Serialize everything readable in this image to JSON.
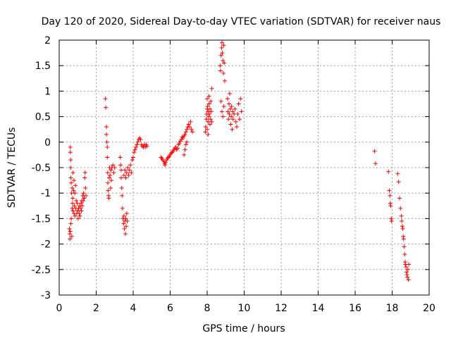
{
  "chart_data": {
    "type": "scatter",
    "title": "Day 120 of 2020, Sidereal Day-to-day VTEC variation (SDTVAR) for receiver naus",
    "xlabel": "GPS time / hours",
    "ylabel": "SDTVAR / TECUs",
    "xlim": [
      0,
      20
    ],
    "ylim": [
      -3,
      2
    ],
    "grid": true,
    "marker": "+",
    "color": "#ff0000",
    "xticks": [
      {
        "value": 0,
        "label": "0"
      },
      {
        "value": 2,
        "label": "2"
      },
      {
        "value": 4,
        "label": "4"
      },
      {
        "value": 6,
        "label": "6"
      },
      {
        "value": 8,
        "label": "8"
      },
      {
        "value": 10,
        "label": "10"
      },
      {
        "value": 12,
        "label": "12"
      },
      {
        "value": 14,
        "label": "14"
      },
      {
        "value": 16,
        "label": "16"
      },
      {
        "value": 18,
        "label": "18"
      },
      {
        "value": 20,
        "label": "20"
      }
    ],
    "yticks": [
      {
        "value": -3,
        "label": "-3"
      },
      {
        "value": -2.5,
        "label": "-2.5"
      },
      {
        "value": -2,
        "label": "-2"
      },
      {
        "value": -1.5,
        "label": "-1.5"
      },
      {
        "value": -1,
        "label": "-1"
      },
      {
        "value": -0.5,
        "label": "-0.5"
      },
      {
        "value": 0,
        "label": "0"
      },
      {
        "value": 0.5,
        "label": "0.5"
      },
      {
        "value": 1,
        "label": "1"
      },
      {
        "value": 1.5,
        "label": "1.5"
      },
      {
        "value": 2,
        "label": "2"
      }
    ],
    "series": [
      {
        "name": "SDTVAR",
        "points": [
          [
            0.55,
            -1.7
          ],
          [
            0.57,
            -1.8
          ],
          [
            0.58,
            -1.9
          ],
          [
            0.6,
            -1.75
          ],
          [
            0.6,
            -0.1
          ],
          [
            0.6,
            -0.2
          ],
          [
            0.62,
            -0.35
          ],
          [
            0.62,
            -0.5
          ],
          [
            0.63,
            -0.7
          ],
          [
            0.63,
            -1.6
          ],
          [
            0.65,
            -0.8
          ],
          [
            0.65,
            -1.5
          ],
          [
            0.67,
            -1.0
          ],
          [
            0.68,
            -1.85
          ],
          [
            0.7,
            -0.9
          ],
          [
            0.7,
            -1.3
          ],
          [
            0.72,
            -1.2
          ],
          [
            0.73,
            -1.1
          ],
          [
            0.75,
            -0.6
          ],
          [
            0.75,
            -1.35
          ],
          [
            0.78,
            -0.95
          ],
          [
            0.8,
            -1.4
          ],
          [
            0.8,
            -0.75
          ],
          [
            0.82,
            -1.25
          ],
          [
            0.85,
            -1.0
          ],
          [
            0.85,
            -1.45
          ],
          [
            0.88,
            -0.85
          ],
          [
            0.9,
            -1.3
          ],
          [
            0.92,
            -1.15
          ],
          [
            0.95,
            -1.4
          ],
          [
            0.98,
            -1.2
          ],
          [
            1.0,
            -1.35
          ],
          [
            1.02,
            -1.5
          ],
          [
            1.05,
            -1.3
          ],
          [
            1.08,
            -1.4
          ],
          [
            1.1,
            -1.25
          ],
          [
            1.12,
            -1.45
          ],
          [
            1.15,
            -1.3
          ],
          [
            1.18,
            -1.2
          ],
          [
            1.2,
            -1.35
          ],
          [
            1.22,
            -1.15
          ],
          [
            1.25,
            -1.25
          ],
          [
            1.28,
            -1.05
          ],
          [
            1.3,
            -1.15
          ],
          [
            1.32,
            -1.0
          ],
          [
            1.35,
            -1.1
          ],
          [
            1.38,
            -0.7
          ],
          [
            1.4,
            -0.6
          ],
          [
            1.42,
            -0.9
          ],
          [
            1.45,
            -1.05
          ],
          [
            2.5,
            0.85
          ],
          [
            2.52,
            0.68
          ],
          [
            2.55,
            0.3
          ],
          [
            2.55,
            0.15
          ],
          [
            2.58,
            0.0
          ],
          [
            2.6,
            -0.1
          ],
          [
            2.6,
            -0.3
          ],
          [
            2.62,
            -0.6
          ],
          [
            2.63,
            -0.8
          ],
          [
            2.65,
            -0.95
          ],
          [
            2.67,
            -1.05
          ],
          [
            2.68,
            -1.1
          ],
          [
            2.7,
            -0.7
          ],
          [
            2.72,
            -0.5
          ],
          [
            2.75,
            -0.65
          ],
          [
            2.78,
            -0.9
          ],
          [
            2.8,
            -0.55
          ],
          [
            2.82,
            -0.75
          ],
          [
            2.85,
            -0.5
          ],
          [
            2.9,
            -0.45
          ],
          [
            2.95,
            -0.6
          ],
          [
            3.0,
            -0.5
          ],
          [
            3.3,
            -0.3
          ],
          [
            3.32,
            -0.45
          ],
          [
            3.35,
            -0.55
          ],
          [
            3.35,
            -0.7
          ],
          [
            3.38,
            -0.9
          ],
          [
            3.4,
            -1.05
          ],
          [
            3.42,
            -1.3
          ],
          [
            3.45,
            -1.5
          ],
          [
            3.48,
            -1.6
          ],
          [
            3.5,
            -1.45
          ],
          [
            3.52,
            -1.7
          ],
          [
            3.55,
            -1.55
          ],
          [
            3.58,
            -1.8
          ],
          [
            3.6,
            -1.5
          ],
          [
            3.62,
            -1.65
          ],
          [
            3.65,
            -1.4
          ],
          [
            3.68,
            -1.55
          ],
          [
            3.5,
            -0.65
          ],
          [
            3.55,
            -0.55
          ],
          [
            3.6,
            -0.7
          ],
          [
            3.65,
            -0.6
          ],
          [
            3.7,
            -0.5
          ],
          [
            3.75,
            -0.65
          ],
          [
            3.8,
            -0.55
          ],
          [
            3.85,
            -0.45
          ],
          [
            3.9,
            -0.6
          ],
          [
            3.95,
            -0.35
          ],
          [
            4.0,
            -0.3
          ],
          [
            4.05,
            -0.2
          ],
          [
            4.1,
            -0.15
          ],
          [
            4.15,
            -0.1
          ],
          [
            4.2,
            -0.05
          ],
          [
            4.25,
            0.0
          ],
          [
            4.3,
            0.05
          ],
          [
            4.35,
            0.08
          ],
          [
            4.4,
            0.05
          ],
          [
            4.45,
            -0.05
          ],
          [
            4.5,
            -0.08
          ],
          [
            4.55,
            -0.1
          ],
          [
            4.6,
            -0.05
          ],
          [
            4.65,
            -0.1
          ],
          [
            4.7,
            -0.05
          ],
          [
            4.75,
            -0.08
          ],
          [
            5.5,
            -0.3
          ],
          [
            5.55,
            -0.32
          ],
          [
            5.6,
            -0.35
          ],
          [
            5.65,
            -0.38
          ],
          [
            5.7,
            -0.42
          ],
          [
            5.72,
            -0.45
          ],
          [
            5.75,
            -0.4
          ],
          [
            5.8,
            -0.35
          ],
          [
            5.85,
            -0.32
          ],
          [
            5.9,
            -0.3
          ],
          [
            5.95,
            -0.28
          ],
          [
            6.0,
            -0.25
          ],
          [
            6.05,
            -0.22
          ],
          [
            6.1,
            -0.2
          ],
          [
            6.15,
            -0.18
          ],
          [
            6.2,
            -0.15
          ],
          [
            6.25,
            -0.12
          ],
          [
            6.3,
            -0.1
          ],
          [
            6.35,
            -0.15
          ],
          [
            6.4,
            -0.12
          ],
          [
            6.45,
            -0.05
          ],
          [
            6.5,
            -0.02
          ],
          [
            6.55,
            0.02
          ],
          [
            6.6,
            0.05
          ],
          [
            6.65,
            0.1
          ],
          [
            6.7,
            0.08
          ],
          [
            6.75,
            0.12
          ],
          [
            6.8,
            0.15
          ],
          [
            6.85,
            0.2
          ],
          [
            6.9,
            0.25
          ],
          [
            6.95,
            0.3
          ],
          [
            7.0,
            0.35
          ],
          [
            7.05,
            0.3
          ],
          [
            7.1,
            0.4
          ],
          [
            7.15,
            0.25
          ],
          [
            7.2,
            0.2
          ],
          [
            6.75,
            -0.25
          ],
          [
            6.8,
            -0.15
          ],
          [
            6.85,
            -0.05
          ],
          [
            6.9,
            0.0
          ],
          [
            7.9,
            0.2
          ],
          [
            7.92,
            0.3
          ],
          [
            7.95,
            0.45
          ],
          [
            7.97,
            0.55
          ],
          [
            8.0,
            0.65
          ],
          [
            8.0,
            0.85
          ],
          [
            8.02,
            0.7
          ],
          [
            8.05,
            0.6
          ],
          [
            8.05,
            0.4
          ],
          [
            8.08,
            0.5
          ],
          [
            8.1,
            0.9
          ],
          [
            8.1,
            0.75
          ],
          [
            8.12,
            0.55
          ],
          [
            8.15,
            0.35
          ],
          [
            8.15,
            0.65
          ],
          [
            8.18,
            0.45
          ],
          [
            8.2,
            0.8
          ],
          [
            8.22,
            0.6
          ],
          [
            8.25,
            0.4
          ],
          [
            8.25,
            1.05
          ],
          [
            8.0,
            0.25
          ],
          [
            8.05,
            0.15
          ],
          [
            8.7,
            1.5
          ],
          [
            8.72,
            1.4
          ],
          [
            8.75,
            1.7
          ],
          [
            8.78,
            1.85
          ],
          [
            8.8,
            1.95
          ],
          [
            8.82,
            1.75
          ],
          [
            8.85,
            1.6
          ],
          [
            8.88,
            1.35
          ],
          [
            8.9,
            1.9
          ],
          [
            8.92,
            1.55
          ],
          [
            8.95,
            1.2
          ],
          [
            8.75,
            0.8
          ],
          [
            8.8,
            0.6
          ],
          [
            8.85,
            0.5
          ],
          [
            8.9,
            0.7
          ],
          [
            9.1,
            0.85
          ],
          [
            9.12,
            0.6
          ],
          [
            9.15,
            0.45
          ],
          [
            9.18,
            0.75
          ],
          [
            9.2,
            0.55
          ],
          [
            9.22,
            0.95
          ],
          [
            9.25,
            0.65
          ],
          [
            9.28,
            0.35
          ],
          [
            9.3,
            0.5
          ],
          [
            9.32,
            0.7
          ],
          [
            9.35,
            0.25
          ],
          [
            9.38,
            0.6
          ],
          [
            9.4,
            0.45
          ],
          [
            9.45,
            0.55
          ],
          [
            9.5,
            0.65
          ],
          [
            9.55,
            0.4
          ],
          [
            9.6,
            0.3
          ],
          [
            9.65,
            0.55
          ],
          [
            9.7,
            0.75
          ],
          [
            9.75,
            0.45
          ],
          [
            9.8,
            0.85
          ],
          [
            9.85,
            0.6
          ],
          [
            17.05,
            -0.18
          ],
          [
            17.1,
            -0.42
          ],
          [
            17.8,
            -0.58
          ],
          [
            17.85,
            -0.95
          ],
          [
            17.88,
            -1.05
          ],
          [
            17.9,
            -1.2
          ],
          [
            17.92,
            -1.25
          ],
          [
            17.95,
            -1.5
          ],
          [
            17.97,
            -1.55
          ],
          [
            18.3,
            -0.62
          ],
          [
            18.35,
            -0.78
          ],
          [
            18.4,
            -1.1
          ],
          [
            18.45,
            -1.3
          ],
          [
            18.5,
            -1.45
          ],
          [
            18.52,
            -1.55
          ],
          [
            18.55,
            -1.65
          ],
          [
            18.58,
            -1.7
          ],
          [
            18.6,
            -1.85
          ],
          [
            18.62,
            -1.9
          ],
          [
            18.65,
            -2.05
          ],
          [
            18.68,
            -2.2
          ],
          [
            18.7,
            -2.35
          ],
          [
            18.72,
            -2.4
          ],
          [
            18.75,
            -2.45
          ],
          [
            18.78,
            -2.55
          ],
          [
            18.8,
            -2.6
          ],
          [
            18.82,
            -2.65
          ],
          [
            18.85,
            -2.5
          ],
          [
            18.88,
            -2.7
          ],
          [
            18.9,
            -2.4
          ]
        ]
      }
    ]
  }
}
